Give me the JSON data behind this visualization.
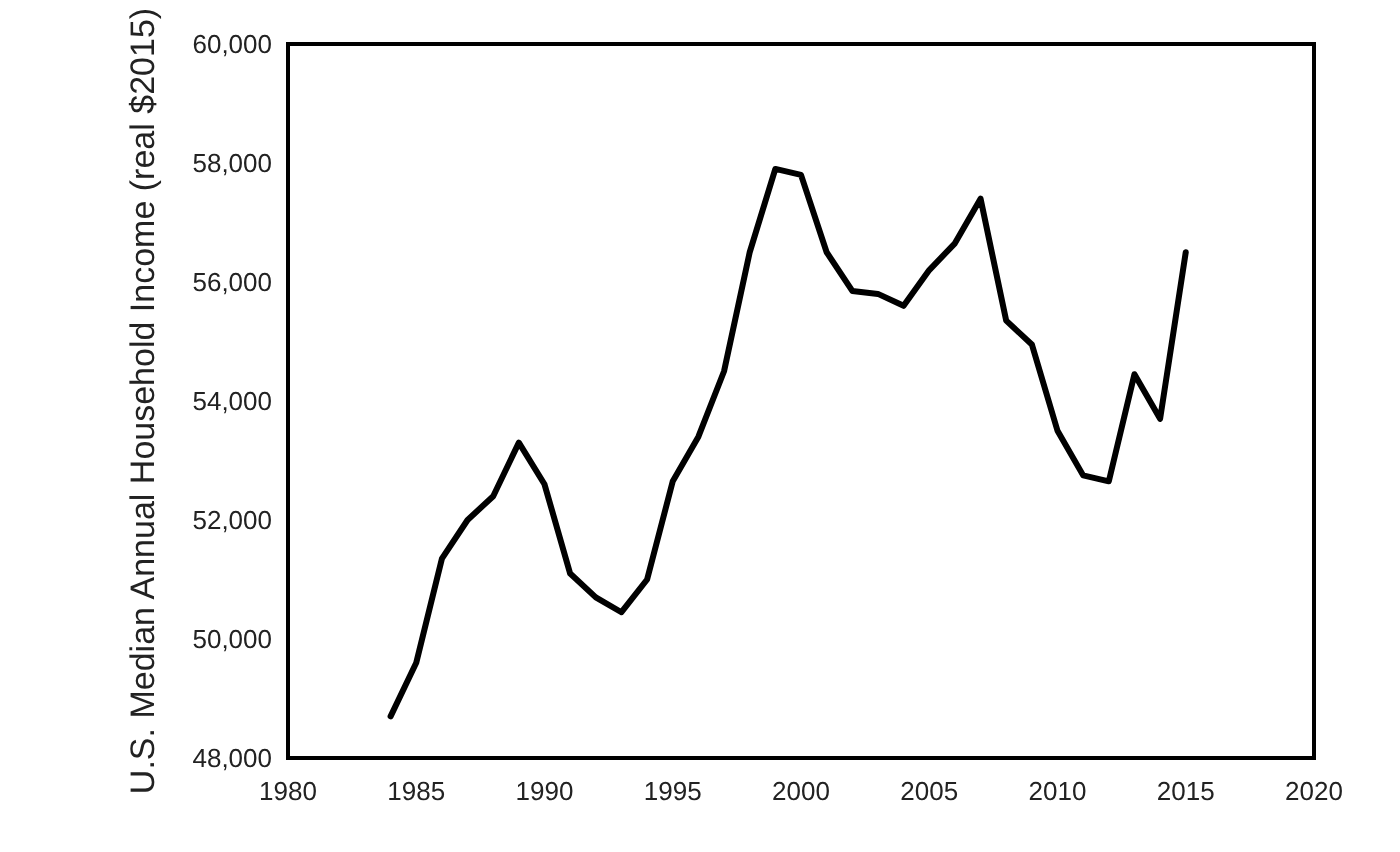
{
  "chart_data": {
    "type": "line",
    "ylabel": "U.S. Median Annual Household Income (real $2015)",
    "x": [
      1984,
      1985,
      1986,
      1987,
      1988,
      1989,
      1990,
      1991,
      1992,
      1993,
      1994,
      1995,
      1996,
      1997,
      1998,
      1999,
      2000,
      2001,
      2002,
      2003,
      2004,
      2005,
      2006,
      2007,
      2008,
      2009,
      2010,
      2011,
      2012,
      2013,
      2014,
      2015
    ],
    "series": [
      {
        "color": "#000000",
        "values": [
          48700,
          49600,
          51350,
          52000,
          52400,
          53300,
          52600,
          51100,
          50700,
          50450,
          51000,
          52650,
          53400,
          54500,
          56500,
          57900,
          57800,
          56500,
          55850,
          55800,
          55600,
          56200,
          56650,
          57400,
          55350,
          54950,
          53500,
          52750,
          52650,
          54450,
          53700,
          56500
        ]
      }
    ],
    "xlim": [
      1980,
      2020
    ],
    "xticks": [
      1980,
      1985,
      1990,
      1995,
      2000,
      2005,
      2010,
      2015,
      2020
    ],
    "ylim": [
      48000,
      60000
    ],
    "yticks": [
      {
        "value": 48000,
        "label": "48,000"
      },
      {
        "value": 50000,
        "label": "50,000"
      },
      {
        "value": 52000,
        "label": "52,000"
      },
      {
        "value": 54000,
        "label": "54,000"
      },
      {
        "value": 56000,
        "label": "56,000"
      },
      {
        "value": 58000,
        "label": "58,000"
      },
      {
        "value": 60000,
        "label": "60,000"
      }
    ],
    "marker": "none",
    "line_style": "solid"
  }
}
